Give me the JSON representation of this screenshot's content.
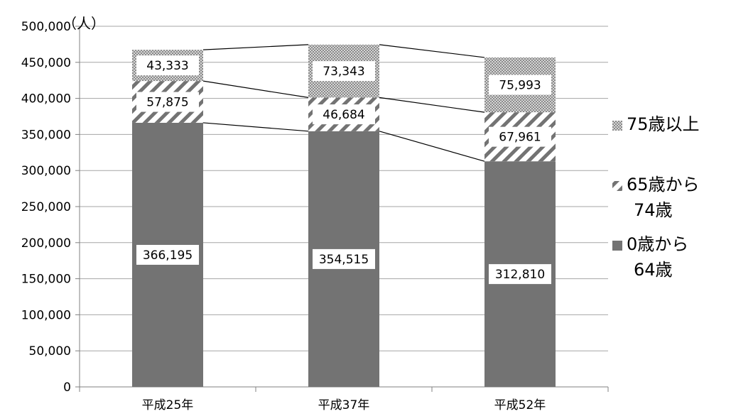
{
  "chart_data": {
    "type": "bar",
    "stacked": true,
    "unit_label": "（人）",
    "categories": [
      "平成25年",
      "平成37年",
      "平成52年"
    ],
    "series": [
      {
        "name": "0歳から64歳",
        "name_lines": [
          "0歳から",
          "64歳"
        ],
        "values": [
          366195,
          354515,
          312810
        ],
        "value_labels": [
          "366,195",
          "354,515",
          "312,810"
        ],
        "pattern": "solid",
        "color": "#737373"
      },
      {
        "name": "65歳から74歳",
        "name_lines": [
          "65歳から",
          "74歳"
        ],
        "values": [
          57875,
          46684,
          67961
        ],
        "value_labels": [
          "57,875",
          "46,684",
          "67,961"
        ],
        "pattern": "diagonal-stripes",
        "color": "#737373"
      },
      {
        "name": "75歳以上",
        "name_lines": [
          "75歳以上"
        ],
        "values": [
          43333,
          73343,
          75993
        ],
        "value_labels": [
          "43,333",
          "73,343",
          "75,993"
        ],
        "pattern": "checker",
        "color": "#9a9a9a"
      }
    ],
    "ylim": [
      0,
      500000
    ],
    "y_ticks": [
      0,
      50000,
      100000,
      150000,
      200000,
      250000,
      300000,
      350000,
      400000,
      450000,
      500000
    ],
    "y_tick_labels": [
      "0",
      "50,000",
      "100,000",
      "150,000",
      "200,000",
      "250,000",
      "300,000",
      "350,000",
      "400,000",
      "450,000",
      "500,000"
    ],
    "grid": true,
    "series_lines": true,
    "legend_position": "right",
    "legend_order": [
      2,
      1,
      0
    ]
  }
}
